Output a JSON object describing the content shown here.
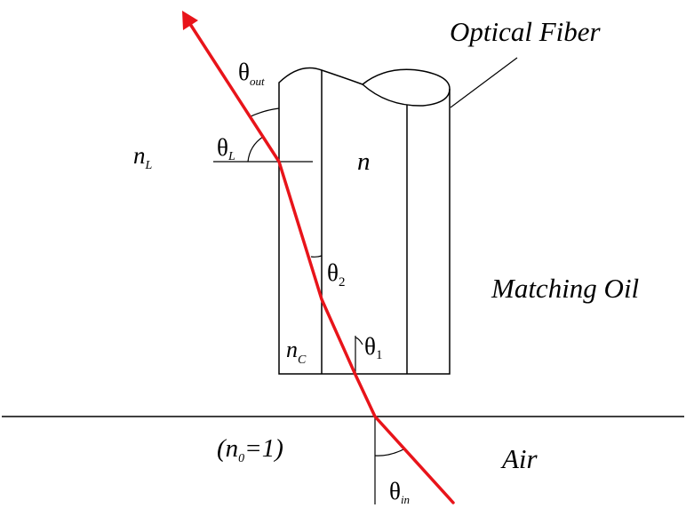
{
  "labels": {
    "fiber_title": "Optical Fiber",
    "theta_symbol": "θ",
    "theta_out_sub": "out",
    "theta_L_sub": "L",
    "theta_2_sub": "2",
    "theta_1_sub": "1",
    "theta_in_sub": "in",
    "nL_main": "n",
    "nL_sub": "L",
    "n_core": "n",
    "nC_main": "n",
    "nC_sub": "C",
    "oil": "Matching Oil",
    "n0_open": "(n",
    "n0_sub": "0",
    "n0_close": "=1)",
    "air": "Air"
  },
  "colors": {
    "ray": "#e8141a",
    "line": "#000000",
    "background": "#ffffff"
  }
}
